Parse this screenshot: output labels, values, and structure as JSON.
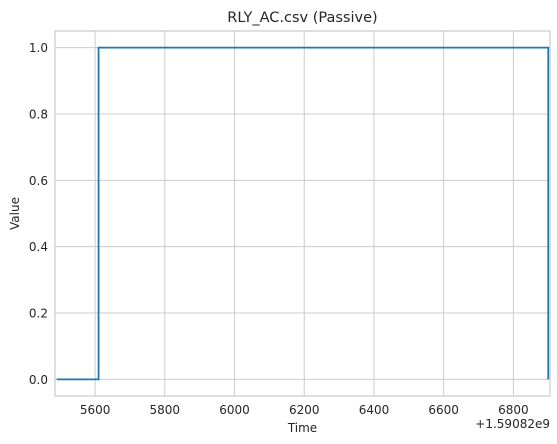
{
  "chart_data": {
    "type": "line",
    "title": "RLY_AC.csv (Passive)",
    "xlabel": "Time",
    "ylabel": "Value",
    "x_offset_label": "+1.59082e9",
    "xlim": [
      5485,
      6905
    ],
    "ylim": [
      -0.05,
      1.05
    ],
    "x_ticks": [
      5600,
      5800,
      6000,
      6200,
      6400,
      6600,
      6800
    ],
    "y_ticks": [
      0.0,
      0.2,
      0.4,
      0.6,
      0.8,
      1.0
    ],
    "x_tick_labels": [
      "5600",
      "5800",
      "6000",
      "6200",
      "6400",
      "6600",
      "6800"
    ],
    "y_tick_labels": [
      "0.0",
      "0.2",
      "0.4",
      "0.6",
      "0.8",
      "1.0"
    ],
    "grid": true,
    "series": [
      {
        "color": "#1f77b4",
        "points": [
          [
            5490,
            0
          ],
          [
            5610,
            0
          ],
          [
            5610,
            1
          ],
          [
            6900,
            1
          ],
          [
            6900,
            0
          ]
        ]
      }
    ]
  }
}
